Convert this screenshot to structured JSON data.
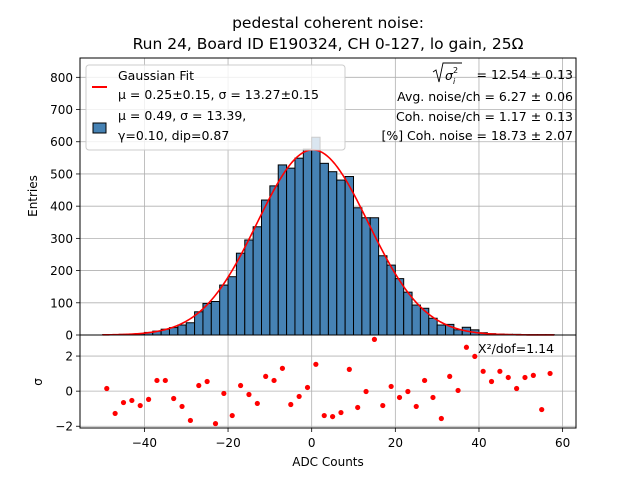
{
  "chart_data": {
    "type": "bar",
    "title_line1": "pedestal coherent noise:",
    "title_line2": "Run 24, Board ID E190324, CH 0-127, lo gain, 25Ω",
    "xlabel": "ADC Counts",
    "ylabel_top": "Entries",
    "ylabel_bottom": "σ",
    "xlim": [
      -55.4,
      63.2
    ],
    "ylim_top": [
      0,
      860
    ],
    "ylim_bottom": [
      -2.1,
      3.2
    ],
    "grid": true,
    "x_ticks": [
      -40,
      -20,
      0,
      20,
      40,
      60
    ],
    "x_tick_labels": [
      "−40",
      "−20",
      "0",
      "20",
      "40",
      "60"
    ],
    "y_ticks_top": [
      0,
      100,
      200,
      300,
      400,
      500,
      600,
      700,
      800
    ],
    "y_tick_labels_top": [
      "0",
      "100",
      "200",
      "300",
      "400",
      "500",
      "600",
      "700",
      "800"
    ],
    "y_ticks_bottom": [
      -2,
      0,
      2
    ],
    "y_tick_labels_bottom": [
      "−2",
      "0",
      "2"
    ],
    "bin_width": 2,
    "bin_centers": [
      -49,
      -47,
      -45,
      -43,
      -41,
      -39,
      -37,
      -35,
      -33,
      -31,
      -29,
      -27,
      -25,
      -23,
      -21,
      -19,
      -17,
      -15,
      -13,
      -11,
      -9,
      -7,
      -5,
      -3,
      -1,
      1,
      3,
      5,
      7,
      9,
      11,
      13,
      15,
      17,
      19,
      21,
      23,
      25,
      27,
      29,
      31,
      33,
      35,
      37,
      39,
      41,
      43,
      45,
      47,
      49,
      51,
      53,
      55,
      57
    ],
    "counts": [
      1,
      1,
      2,
      2,
      4,
      8,
      12,
      18,
      23,
      31,
      38,
      72,
      98,
      104,
      155,
      181,
      254,
      295,
      336,
      419,
      463,
      528,
      518,
      549,
      577,
      614,
      533,
      507,
      481,
      492,
      395,
      364,
      364,
      246,
      217,
      175,
      133,
      93,
      83,
      52,
      31,
      33,
      16,
      24,
      16,
      7,
      4,
      3,
      2,
      2,
      1,
      1,
      1,
      1
    ],
    "histogram_color": "#4682b4",
    "fit": {
      "name": "Gaussian Fit",
      "mu": 0.25,
      "sigma": 13.27,
      "amplitude": 575,
      "color": "#ff0000",
      "x_range": [
        -50,
        58
      ]
    },
    "residuals": {
      "x": [
        -49,
        -47,
        -45,
        -43,
        -41,
        -39,
        -37,
        -35,
        -33,
        -31,
        -29,
        -27,
        -25,
        -23,
        -21,
        -19,
        -17,
        -15,
        -13,
        -11,
        -9,
        -7,
        -5,
        -3,
        -1,
        1,
        3,
        5,
        7,
        9,
        11,
        13,
        15,
        17,
        19,
        21,
        23,
        25,
        27,
        29,
        31,
        33,
        35,
        37,
        39,
        41,
        43,
        45,
        47,
        49,
        51,
        53,
        55,
        57
      ],
      "y": [
        0.15,
        -1.27,
        -0.65,
        -0.53,
        -0.82,
        -0.47,
        0.61,
        0.61,
        -0.42,
        -0.87,
        -1.67,
        0.32,
        0.55,
        -1.85,
        -0.13,
        -1.39,
        0.32,
        -0.19,
        -0.7,
        0.84,
        0.61,
        1.3,
        -0.76,
        -0.3,
        0.21,
        1.53,
        -1.39,
        -1.45,
        -1.22,
        1.24,
        -0.93,
        -0.02,
        2.95,
        -0.82,
        0.27,
        -0.36,
        -0.02,
        -0.87,
        0.61,
        -0.36,
        -1.56,
        0.84,
        0.04,
        2.5,
        1.98,
        1.13,
        0.55,
        1.13,
        0.78,
        0.15,
        0.78,
        0.9,
        -1.05,
        1.01
      ],
      "color": "#ff0000"
    },
    "legend": {
      "placement": "upper-left",
      "entries": [
        {
          "label_line1": "Gaussian Fit",
          "label_line2": "μ = 0.25±0.15, σ = 13.27±0.15",
          "marker": "line"
        },
        {
          "label_line1": "μ = 0.49, σ = 13.39,",
          "label_line2": "γ=0.10, dip=0.87",
          "marker": "patch"
        }
      ]
    },
    "stats_box": {
      "placement": "upper-right",
      "lines": [
        "= 12.54 ± 0.13",
        "Avg. noise/ch = 6.27 ± 0.06",
        "Coh. noise/ch = 1.17 ± 0.13",
        "[%] Coh. noise = 18.73  ± 2.07"
      ],
      "sqrt_symbol_label": "σ",
      "sqrt_symbol_sub": "i",
      "sqrt_symbol_sup": "2"
    },
    "chi2_annotation": "X²/dof=1.14"
  }
}
